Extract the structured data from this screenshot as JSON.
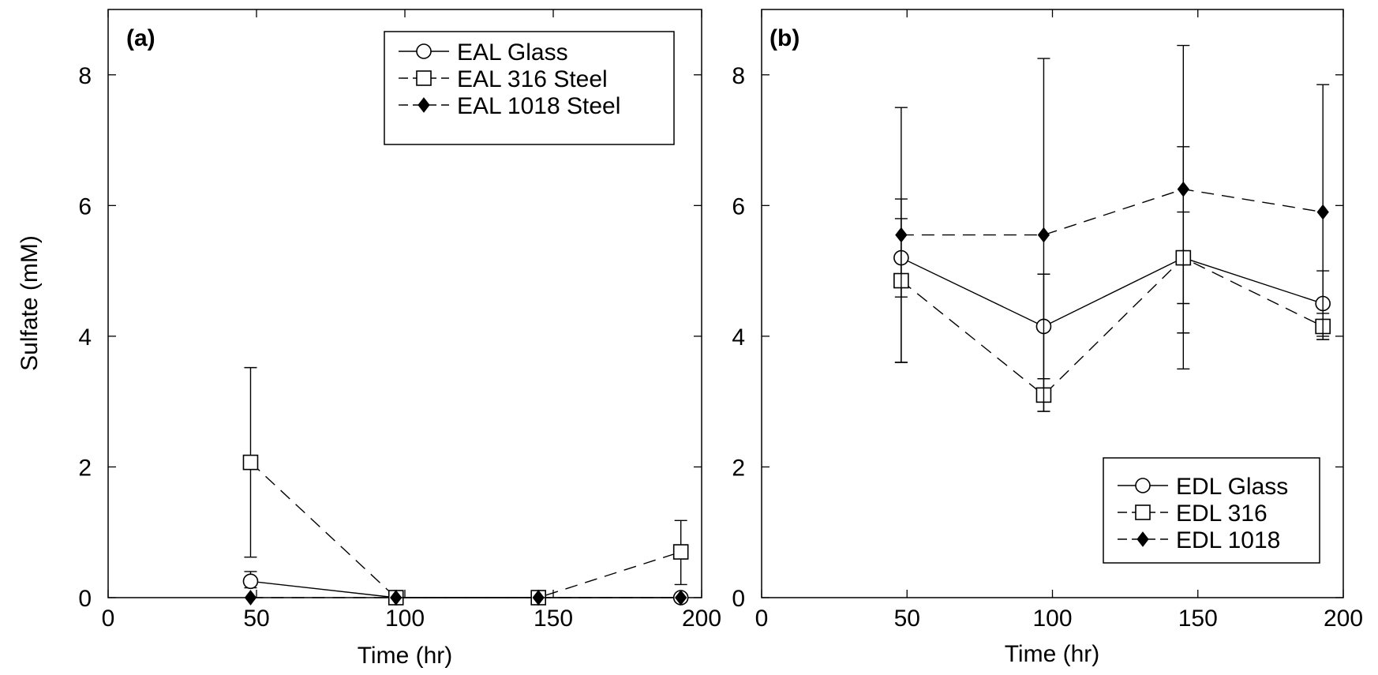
{
  "chart_data": [
    {
      "type": "line",
      "panel_label": "(a)",
      "xlabel": "Time (hr)",
      "ylabel": "Sulfate (mM)",
      "xlim": [
        0,
        200
      ],
      "ylim": [
        0,
        9
      ],
      "xticks": [
        0,
        50,
        100,
        150,
        200
      ],
      "yticks": [
        0,
        2,
        4,
        6,
        8
      ],
      "grid": false,
      "legend_position": "top-right",
      "series": [
        {
          "name": "EAL Glass",
          "marker": "circle",
          "line": "solid",
          "x": [
            48,
            97,
            145,
            193
          ],
          "y": [
            0.25,
            0,
            0,
            0
          ],
          "err_lo": [
            0.1,
            0,
            0,
            0
          ],
          "err_hi": [
            0.15,
            0,
            0,
            0
          ]
        },
        {
          "name": "EAL 316 Steel",
          "marker": "square",
          "line": "dashed",
          "x": [
            48,
            97,
            145,
            193
          ],
          "y": [
            2.07,
            0,
            0,
            0.7
          ],
          "err_lo": [
            1.45,
            0,
            0,
            0.5
          ],
          "err_hi": [
            1.45,
            0,
            0,
            0.48
          ]
        },
        {
          "name": "EAL 1018 Steel",
          "marker": "diamond",
          "line": "dashed",
          "x": [
            48,
            97,
            145,
            193
          ],
          "y": [
            0,
            0,
            0,
            0
          ],
          "err_lo": [
            0,
            0,
            0,
            0
          ],
          "err_hi": [
            0,
            0,
            0,
            0
          ]
        }
      ]
    },
    {
      "type": "line",
      "panel_label": "(b)",
      "xlabel": "Time (hr)",
      "ylabel": "",
      "xlim": [
        0,
        200
      ],
      "ylim": [
        0,
        9
      ],
      "xticks": [
        0,
        50,
        100,
        150,
        200
      ],
      "yticks": [
        0,
        2,
        4,
        6,
        8
      ],
      "grid": false,
      "legend_position": "bottom-right",
      "series": [
        {
          "name": "EDL Glass",
          "marker": "circle",
          "line": "solid",
          "x": [
            48,
            97,
            145,
            193
          ],
          "y": [
            5.2,
            4.15,
            5.2,
            4.5
          ],
          "err_lo": [
            0.6,
            0.8,
            0.7,
            0.5
          ],
          "err_hi": [
            0.6,
            0.8,
            0.7,
            0.5
          ]
        },
        {
          "name": "EDL 316",
          "marker": "square",
          "line": "dashed",
          "x": [
            48,
            97,
            145,
            193
          ],
          "y": [
            4.85,
            3.1,
            5.2,
            4.15
          ],
          "err_lo": [
            1.25,
            0.25,
            1.7,
            0.2
          ],
          "err_hi": [
            1.25,
            0.25,
            1.7,
            0.2
          ]
        },
        {
          "name": "EDL 1018",
          "marker": "diamond",
          "line": "dashed",
          "x": [
            48,
            97,
            145,
            193
          ],
          "y": [
            5.55,
            5.55,
            6.25,
            5.9
          ],
          "err_lo": [
            1.95,
            2.7,
            2.2,
            1.95
          ],
          "err_hi": [
            1.95,
            2.7,
            2.2,
            1.95
          ]
        }
      ]
    }
  ]
}
